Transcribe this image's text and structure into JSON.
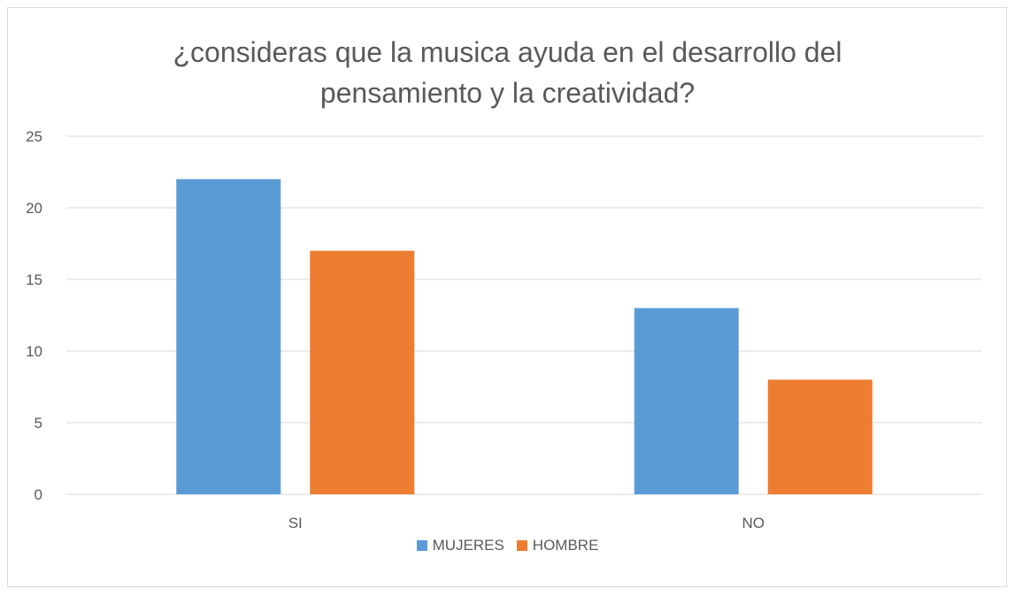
{
  "chart_data": {
    "type": "bar",
    "title_lines": [
      "¿consideras que la musica ayuda en el desarrollo del",
      "pensamiento y la creatividad?"
    ],
    "categories": [
      "SI",
      "NO"
    ],
    "series": [
      {
        "name": "MUJERES",
        "values": [
          22,
          13
        ],
        "color": "#5b9bd5"
      },
      {
        "name": "HOMBRE",
        "values": [
          17,
          8
        ],
        "color": "#ed7d31"
      }
    ],
    "y_ticks": [
      "0",
      "5",
      "10",
      "15",
      "20",
      "25"
    ],
    "ylim": [
      0,
      25
    ],
    "grid": true,
    "legend_position": "bottom"
  }
}
